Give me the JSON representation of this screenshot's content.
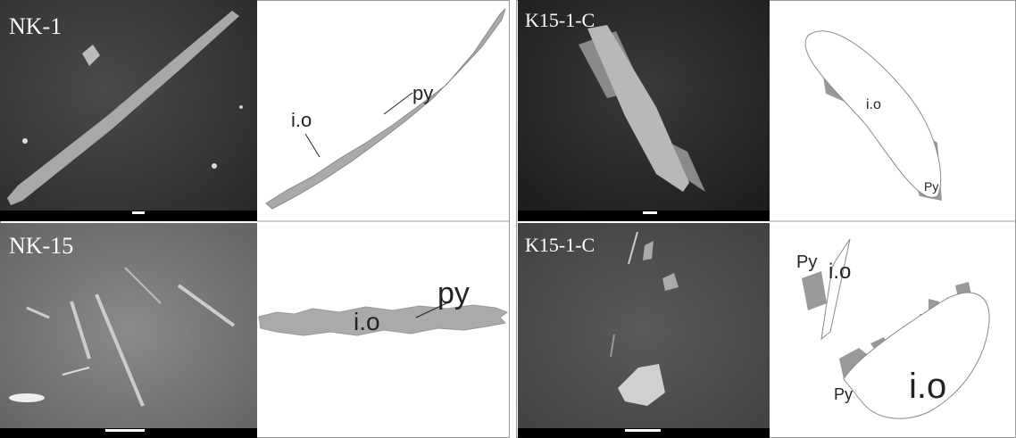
{
  "panels": [
    {
      "label": "NK-1",
      "annotations": [
        "py",
        "i.o"
      ]
    },
    {
      "label": "NK-15",
      "annotations": [
        "i.o",
        "py"
      ]
    },
    {
      "label": "K15-1-C",
      "annotations": [
        "i.o",
        "Py"
      ]
    },
    {
      "label": "K15-1-C",
      "annotations": [
        "Py",
        "i.o",
        "Py",
        "i.o"
      ]
    }
  ]
}
